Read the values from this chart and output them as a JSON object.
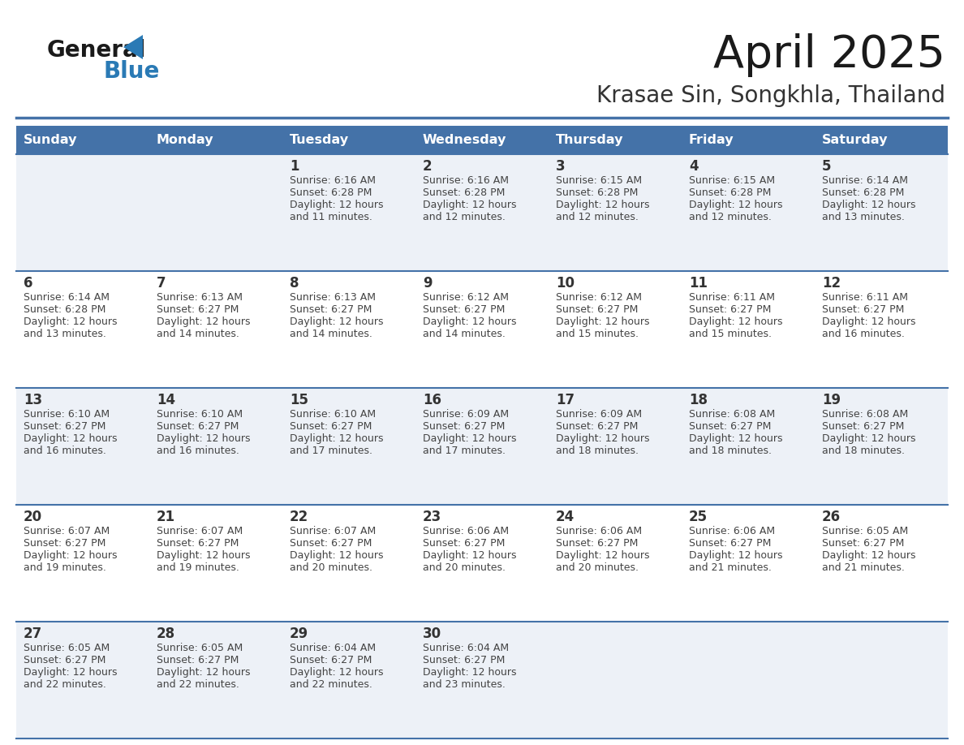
{
  "title": "April 2025",
  "subtitle": "Krasae Sin, Songkhla, Thailand",
  "days_of_week": [
    "Sunday",
    "Monday",
    "Tuesday",
    "Wednesday",
    "Thursday",
    "Friday",
    "Saturday"
  ],
  "header_bg": "#4472a8",
  "header_text": "#ffffff",
  "cell_bg_light": "#edf1f7",
  "cell_bg_white": "#ffffff",
  "row_line_color": "#4472a8",
  "day_number_color": "#333333",
  "cell_text_color": "#444444",
  "title_color": "#1a1a1a",
  "subtitle_color": "#333333",
  "logo_general_color": "#1a1a1a",
  "logo_blue_color": "#2a7ab5",
  "weeks": [
    [
      {
        "day": null,
        "info": null
      },
      {
        "day": null,
        "info": null
      },
      {
        "day": 1,
        "info": "Sunrise: 6:16 AM\nSunset: 6:28 PM\nDaylight: 12 hours\nand 11 minutes."
      },
      {
        "day": 2,
        "info": "Sunrise: 6:16 AM\nSunset: 6:28 PM\nDaylight: 12 hours\nand 12 minutes."
      },
      {
        "day": 3,
        "info": "Sunrise: 6:15 AM\nSunset: 6:28 PM\nDaylight: 12 hours\nand 12 minutes."
      },
      {
        "day": 4,
        "info": "Sunrise: 6:15 AM\nSunset: 6:28 PM\nDaylight: 12 hours\nand 12 minutes."
      },
      {
        "day": 5,
        "info": "Sunrise: 6:14 AM\nSunset: 6:28 PM\nDaylight: 12 hours\nand 13 minutes."
      }
    ],
    [
      {
        "day": 6,
        "info": "Sunrise: 6:14 AM\nSunset: 6:28 PM\nDaylight: 12 hours\nand 13 minutes."
      },
      {
        "day": 7,
        "info": "Sunrise: 6:13 AM\nSunset: 6:27 PM\nDaylight: 12 hours\nand 14 minutes."
      },
      {
        "day": 8,
        "info": "Sunrise: 6:13 AM\nSunset: 6:27 PM\nDaylight: 12 hours\nand 14 minutes."
      },
      {
        "day": 9,
        "info": "Sunrise: 6:12 AM\nSunset: 6:27 PM\nDaylight: 12 hours\nand 14 minutes."
      },
      {
        "day": 10,
        "info": "Sunrise: 6:12 AM\nSunset: 6:27 PM\nDaylight: 12 hours\nand 15 minutes."
      },
      {
        "day": 11,
        "info": "Sunrise: 6:11 AM\nSunset: 6:27 PM\nDaylight: 12 hours\nand 15 minutes."
      },
      {
        "day": 12,
        "info": "Sunrise: 6:11 AM\nSunset: 6:27 PM\nDaylight: 12 hours\nand 16 minutes."
      }
    ],
    [
      {
        "day": 13,
        "info": "Sunrise: 6:10 AM\nSunset: 6:27 PM\nDaylight: 12 hours\nand 16 minutes."
      },
      {
        "day": 14,
        "info": "Sunrise: 6:10 AM\nSunset: 6:27 PM\nDaylight: 12 hours\nand 16 minutes."
      },
      {
        "day": 15,
        "info": "Sunrise: 6:10 AM\nSunset: 6:27 PM\nDaylight: 12 hours\nand 17 minutes."
      },
      {
        "day": 16,
        "info": "Sunrise: 6:09 AM\nSunset: 6:27 PM\nDaylight: 12 hours\nand 17 minutes."
      },
      {
        "day": 17,
        "info": "Sunrise: 6:09 AM\nSunset: 6:27 PM\nDaylight: 12 hours\nand 18 minutes."
      },
      {
        "day": 18,
        "info": "Sunrise: 6:08 AM\nSunset: 6:27 PM\nDaylight: 12 hours\nand 18 minutes."
      },
      {
        "day": 19,
        "info": "Sunrise: 6:08 AM\nSunset: 6:27 PM\nDaylight: 12 hours\nand 18 minutes."
      }
    ],
    [
      {
        "day": 20,
        "info": "Sunrise: 6:07 AM\nSunset: 6:27 PM\nDaylight: 12 hours\nand 19 minutes."
      },
      {
        "day": 21,
        "info": "Sunrise: 6:07 AM\nSunset: 6:27 PM\nDaylight: 12 hours\nand 19 minutes."
      },
      {
        "day": 22,
        "info": "Sunrise: 6:07 AM\nSunset: 6:27 PM\nDaylight: 12 hours\nand 20 minutes."
      },
      {
        "day": 23,
        "info": "Sunrise: 6:06 AM\nSunset: 6:27 PM\nDaylight: 12 hours\nand 20 minutes."
      },
      {
        "day": 24,
        "info": "Sunrise: 6:06 AM\nSunset: 6:27 PM\nDaylight: 12 hours\nand 20 minutes."
      },
      {
        "day": 25,
        "info": "Sunrise: 6:06 AM\nSunset: 6:27 PM\nDaylight: 12 hours\nand 21 minutes."
      },
      {
        "day": 26,
        "info": "Sunrise: 6:05 AM\nSunset: 6:27 PM\nDaylight: 12 hours\nand 21 minutes."
      }
    ],
    [
      {
        "day": 27,
        "info": "Sunrise: 6:05 AM\nSunset: 6:27 PM\nDaylight: 12 hours\nand 22 minutes."
      },
      {
        "day": 28,
        "info": "Sunrise: 6:05 AM\nSunset: 6:27 PM\nDaylight: 12 hours\nand 22 minutes."
      },
      {
        "day": 29,
        "info": "Sunrise: 6:04 AM\nSunset: 6:27 PM\nDaylight: 12 hours\nand 22 minutes."
      },
      {
        "day": 30,
        "info": "Sunrise: 6:04 AM\nSunset: 6:27 PM\nDaylight: 12 hours\nand 23 minutes."
      },
      {
        "day": null,
        "info": null
      },
      {
        "day": null,
        "info": null
      },
      {
        "day": null,
        "info": null
      }
    ]
  ]
}
